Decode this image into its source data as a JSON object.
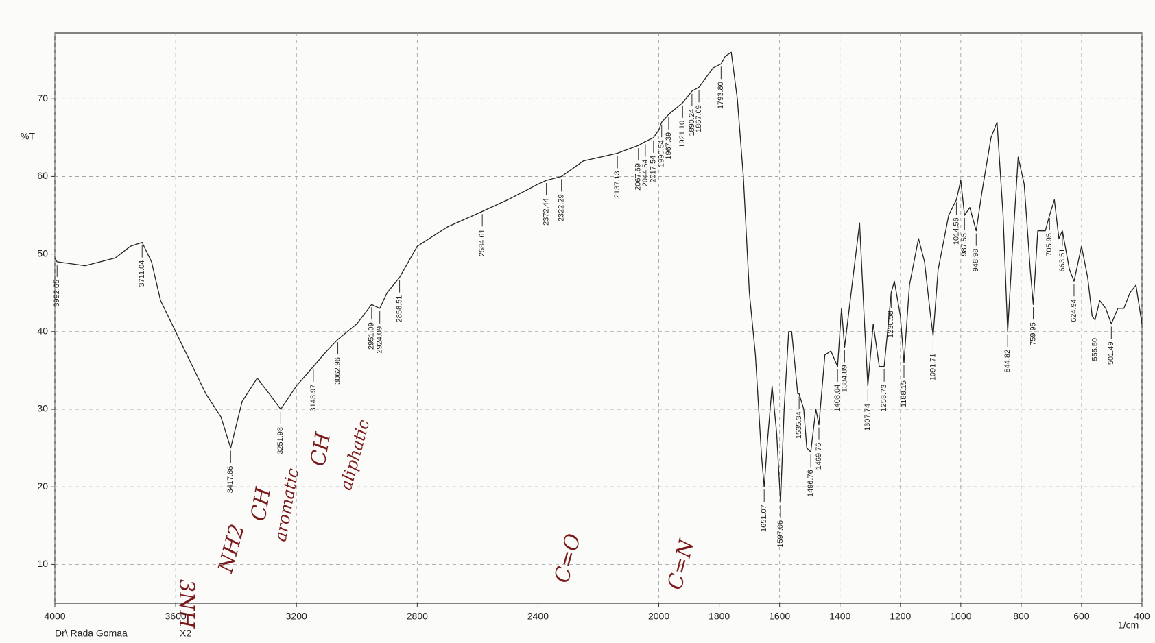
{
  "chart_data": {
    "type": "line",
    "y_label": "%T",
    "x_label": "1/cm",
    "footer": "Dr\\ Rada Gomaa",
    "scale_note": "X2",
    "xlim": [
      4000,
      400
    ],
    "ylim": [
      5,
      78.5
    ],
    "xticks": [
      4000,
      3600,
      3200,
      2800,
      2400,
      2000,
      1800,
      1600,
      1400,
      1200,
      1000,
      800,
      600,
      400
    ],
    "yticks": [
      10,
      20,
      30,
      40,
      50,
      60,
      70
    ],
    "grid": true,
    "x": [
      4000,
      3992.65,
      3900,
      3800,
      3750,
      3711.04,
      3680,
      3650,
      3600,
      3550,
      3500,
      3450,
      3417.86,
      3380,
      3330,
      3290,
      3251.98,
      3200,
      3143.97,
      3100,
      3062.96,
      3000,
      2951.09,
      2924.09,
      2900,
      2858.51,
      2800,
      2700,
      2584.61,
      2500,
      2400,
      2372.44,
      2322.29,
      2250,
      2137.13,
      2067.69,
      2044.54,
      2017.54,
      2000,
      1990.54,
      1967.39,
      1921.1,
      1890.24,
      1867.09,
      1820,
      1793.8,
      1780,
      1760,
      1740,
      1720,
      1700,
      1680,
      1660,
      1651.07,
      1640,
      1625,
      1610,
      1597.06,
      1585,
      1570,
      1560,
      1540,
      1535.34,
      1520,
      1510,
      1496.76,
      1480,
      1469.76,
      1450,
      1430,
      1408.04,
      1395,
      1384.89,
      1360,
      1335,
      1320,
      1307.74,
      1290,
      1270,
      1253.73,
      1240,
      1230.58,
      1220,
      1200,
      1188.15,
      1170,
      1140,
      1120,
      1100,
      1091.71,
      1075,
      1040,
      1014.56,
      1000,
      987.55,
      970,
      948.98,
      930,
      900,
      880,
      860,
      844.82,
      830,
      810,
      790,
      770,
      759.95,
      745,
      720,
      705.95,
      690,
      675,
      663.51,
      640,
      624.94,
      600,
      580,
      565,
      555.5,
      540,
      520,
      501.49,
      480,
      460,
      440,
      420,
      400
    ],
    "series": [
      {
        "color": "#222222",
        "values": [
          49.5,
          49,
          48.5,
          49.5,
          51,
          51.5,
          49,
          44,
          40,
          36,
          32,
          29,
          25,
          31,
          34,
          32,
          30,
          33,
          35.5,
          37.5,
          39,
          41,
          43.5,
          43,
          45,
          47,
          51,
          53.5,
          55.5,
          57,
          59,
          59.5,
          60,
          62,
          63,
          64,
          64.5,
          65,
          66,
          67,
          68,
          69.5,
          71,
          71.5,
          74,
          74.5,
          75.5,
          76,
          70,
          60,
          45,
          37,
          24,
          20,
          26,
          33,
          27,
          18,
          30,
          40,
          40,
          32,
          32,
          30,
          25,
          24.5,
          30,
          28,
          37,
          37.5,
          35.5,
          43,
          38,
          46,
          54,
          42,
          33,
          41,
          35.5,
          35.5,
          41,
          45,
          46.5,
          42,
          36,
          46,
          52,
          49,
          42,
          39.5,
          48,
          55,
          57,
          59.5,
          55,
          56,
          53,
          58,
          65,
          67,
          55,
          40,
          50,
          62.5,
          59,
          48,
          43.5,
          53,
          53,
          55,
          57,
          52,
          53,
          48,
          46.5,
          51,
          47,
          42,
          41.5,
          44,
          43,
          41,
          43,
          43,
          45,
          46,
          41
        ]
      }
    ],
    "peaks": [
      {
        "value": 3992.65,
        "label": "3992.65"
      },
      {
        "value": 3711.04,
        "label": "3711.04"
      },
      {
        "value": 3417.86,
        "label": "3417.86"
      },
      {
        "value": 3251.98,
        "label": "3251.98"
      },
      {
        "value": 3143.97,
        "label": "3143.97"
      },
      {
        "value": 3062.96,
        "label": "3062.96"
      },
      {
        "value": 2951.09,
        "label": "2951.09"
      },
      {
        "value": 2924.09,
        "label": "2924.09"
      },
      {
        "value": 2858.51,
        "label": "2858.51"
      },
      {
        "value": 2584.61,
        "label": "2584.61"
      },
      {
        "value": 2372.44,
        "label": "2372.44"
      },
      {
        "value": 2322.29,
        "label": "2322.29"
      },
      {
        "value": 2137.13,
        "label": "2137.13"
      },
      {
        "value": 2067.69,
        "label": "2067.69"
      },
      {
        "value": 2044.54,
        "label": "2044.54"
      },
      {
        "value": 2017.54,
        "label": "2017.54"
      },
      {
        "value": 1990.54,
        "label": "1990.54"
      },
      {
        "value": 1967.39,
        "label": "1967.39"
      },
      {
        "value": 1921.1,
        "label": "1921.10"
      },
      {
        "value": 1890.24,
        "label": "1890.24"
      },
      {
        "value": 1867.09,
        "label": "1867.09"
      },
      {
        "value": 1793.8,
        "label": "1793.80"
      },
      {
        "value": 1651.07,
        "label": "1651.07"
      },
      {
        "value": 1597.06,
        "label": "1597.06"
      },
      {
        "value": 1535.34,
        "label": "1535.34"
      },
      {
        "value": 1496.76,
        "label": "1496.76"
      },
      {
        "value": 1469.76,
        "label": "1469.76"
      },
      {
        "value": 1408.04,
        "label": "1408.04"
      },
      {
        "value": 1384.89,
        "label": "1384.89"
      },
      {
        "value": 1307.74,
        "label": "1307.74"
      },
      {
        "value": 1253.73,
        "label": "1253.73"
      },
      {
        "value": 1230.58,
        "label": "1230.58"
      },
      {
        "value": 1188.15,
        "label": "1188.15"
      },
      {
        "value": 1091.71,
        "label": "1091.71"
      },
      {
        "value": 1014.56,
        "label": "1014.56"
      },
      {
        "value": 987.55,
        "label": "987.55"
      },
      {
        "value": 948.98,
        "label": "948.98"
      },
      {
        "value": 844.82,
        "label": "844.82"
      },
      {
        "value": 759.95,
        "label": "759.95"
      },
      {
        "value": 705.95,
        "label": "705.95"
      },
      {
        "value": 663.51,
        "label": "663.51"
      },
      {
        "value": 624.94,
        "label": "624.94"
      },
      {
        "value": 555.5,
        "label": "555.50"
      },
      {
        "value": 501.49,
        "label": "501.49"
      }
    ],
    "annotations": [
      "3NH",
      "NH2",
      "CH",
      "aromatic",
      "CH",
      "aliphatic",
      "C=O",
      "C=N"
    ]
  }
}
